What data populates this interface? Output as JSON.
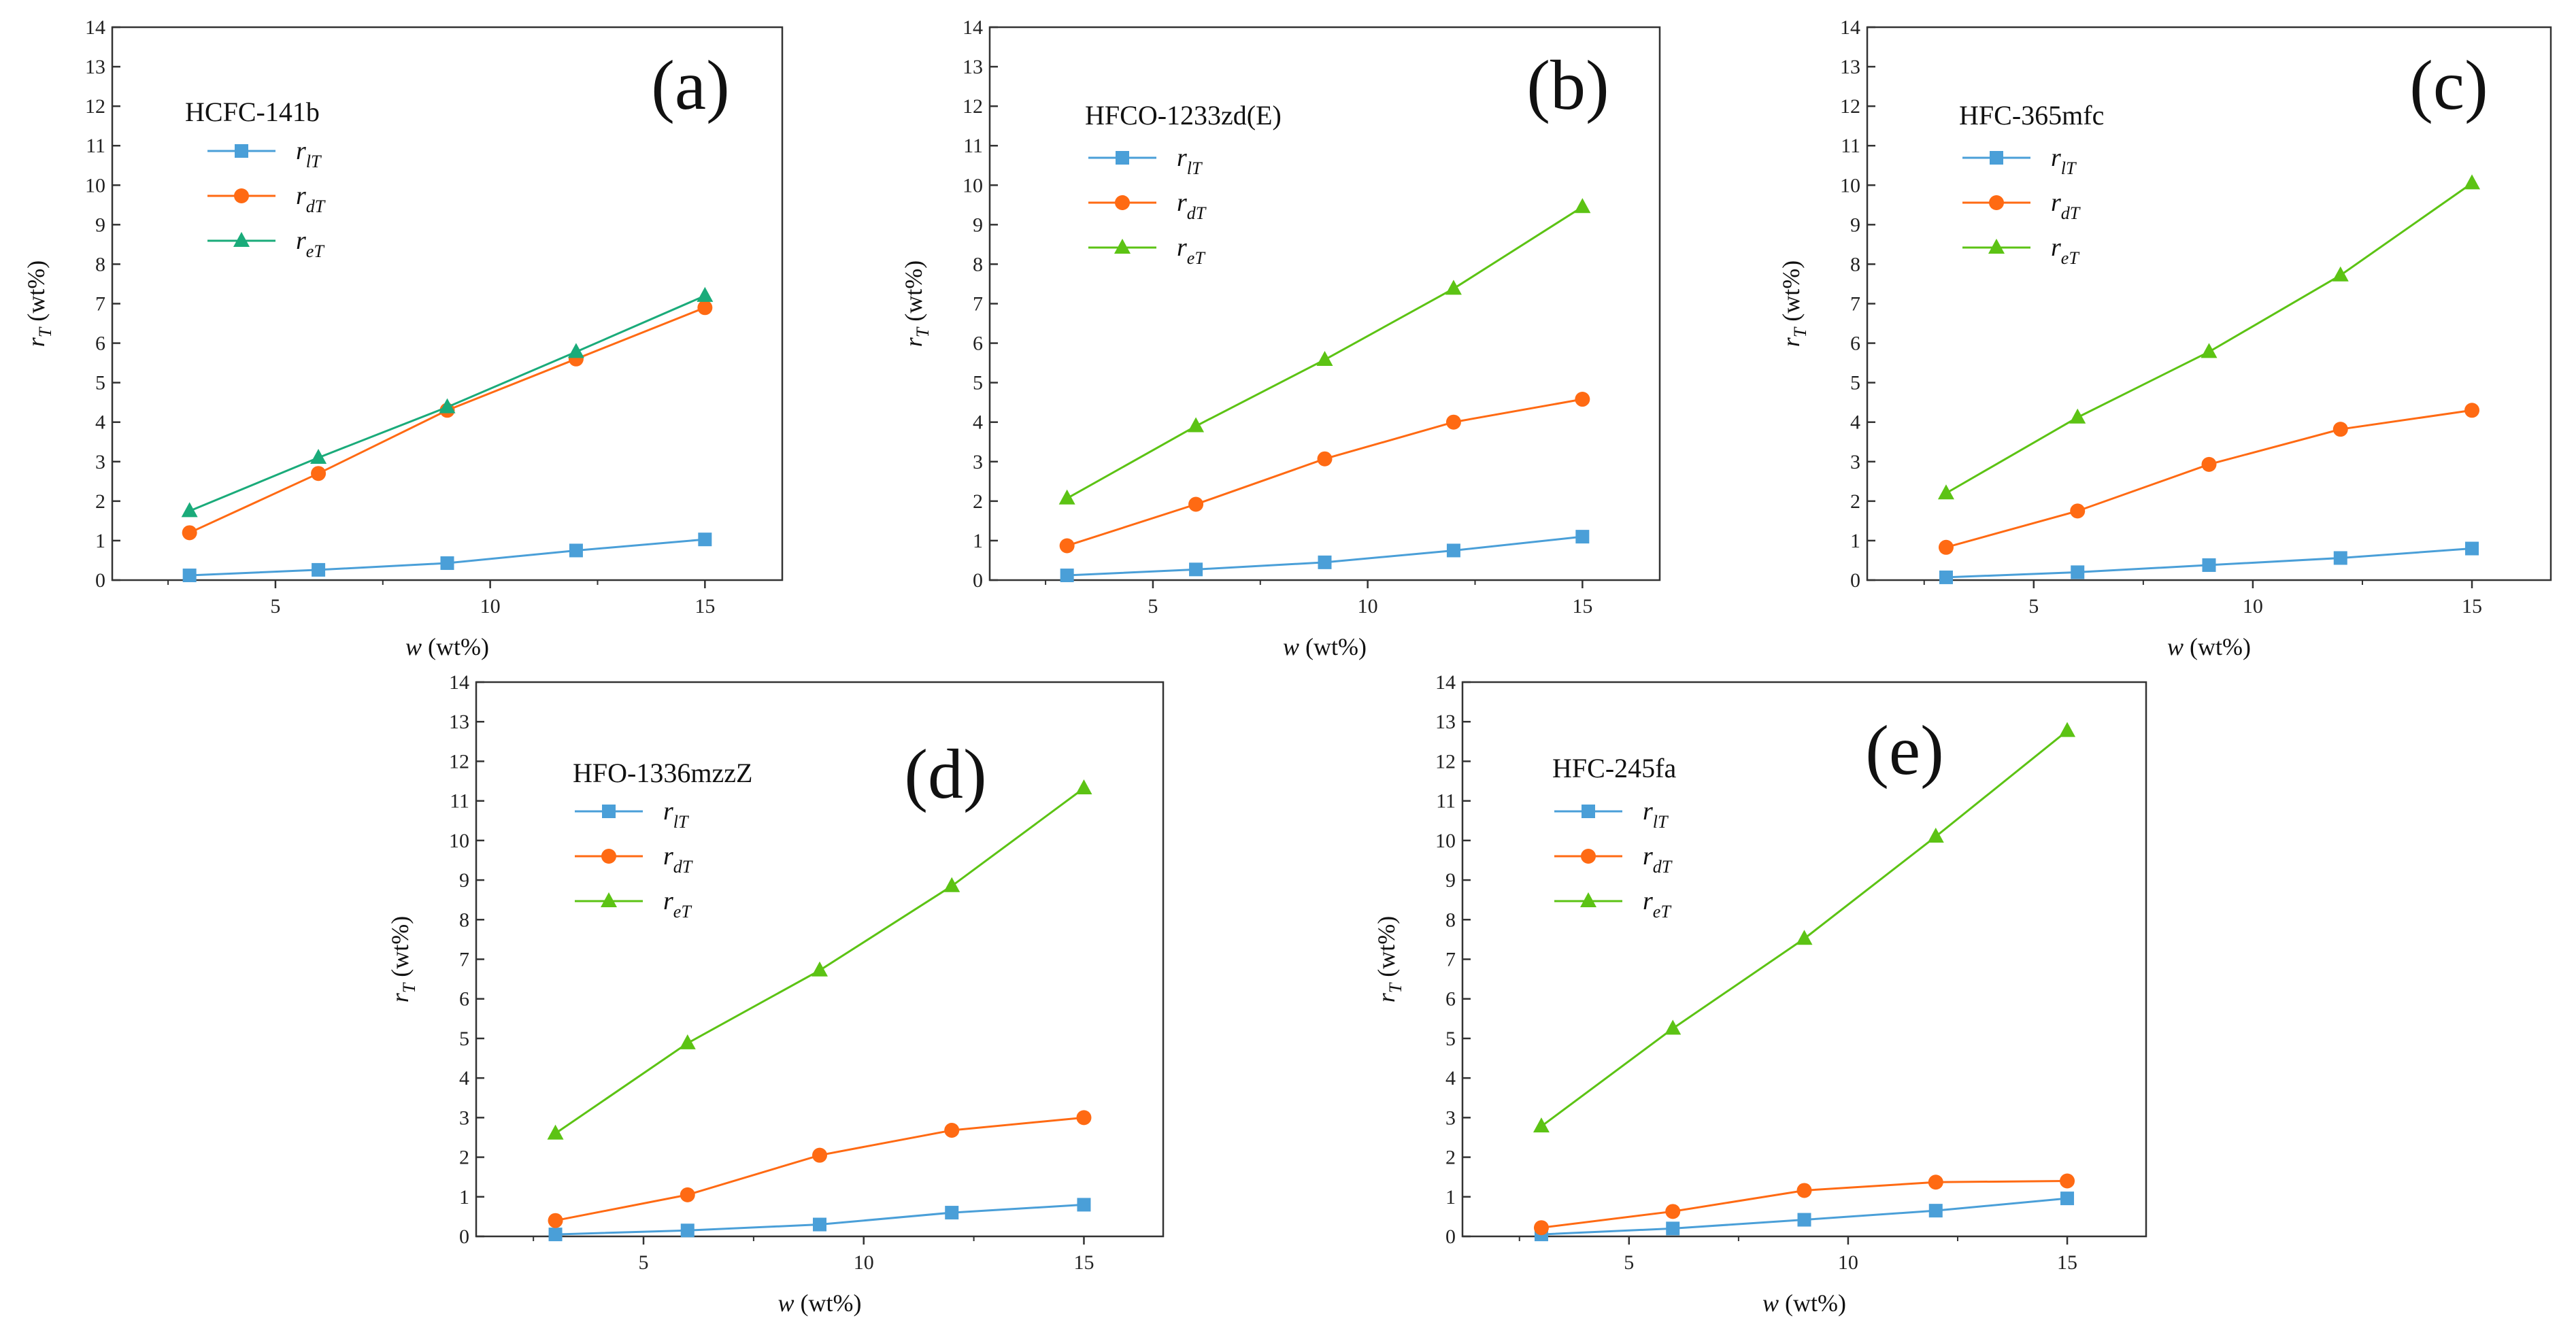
{
  "figure": {
    "x_axis_label_main": "w",
    "x_axis_label_unit": "(wt%)",
    "y_axis_label_main": "r",
    "y_axis_label_sub": "T",
    "y_axis_label_unit": "(wt%)"
  },
  "legend": [
    {
      "main": "r",
      "sub": "lT"
    },
    {
      "main": "r",
      "sub": "dT"
    },
    {
      "main": "r",
      "sub": "eT"
    }
  ],
  "colors": {
    "rlT": "#4a9fd8",
    "rdT": "#ff6a13",
    "reT_a": "#1aab7a",
    "reT": "#5cc314"
  },
  "chart_data": [
    {
      "type": "line",
      "panel": "(a)",
      "refrigerant": "HCFC-141b",
      "x": [
        3,
        6,
        9,
        12,
        15
      ],
      "xlim": [
        1.2,
        16.8
      ],
      "ylim": [
        0,
        14
      ],
      "xticks": [
        5,
        10,
        15
      ],
      "yticks": [
        0,
        1,
        2,
        3,
        4,
        5,
        6,
        7,
        8,
        9,
        10,
        11,
        12,
        13,
        14
      ],
      "xlabel": "w (wt%)",
      "ylabel": "rT (wt%)",
      "series": [
        {
          "name": "rlT",
          "values": [
            0.12,
            0.26,
            0.43,
            0.75,
            1.03
          ]
        },
        {
          "name": "rdT",
          "values": [
            1.2,
            2.7,
            4.3,
            5.6,
            6.9
          ]
        },
        {
          "name": "reT",
          "values": [
            1.75,
            3.1,
            4.38,
            5.78,
            7.2
          ]
        }
      ]
    },
    {
      "type": "line",
      "panel": "(b)",
      "refrigerant": "HFCO-1233zd(E)",
      "x": [
        3,
        6,
        9,
        12,
        15
      ],
      "xlim": [
        1.2,
        16.8
      ],
      "ylim": [
        0,
        14
      ],
      "xticks": [
        5,
        10,
        15
      ],
      "yticks": [
        0,
        1,
        2,
        3,
        4,
        5,
        6,
        7,
        8,
        9,
        10,
        11,
        12,
        13,
        14
      ],
      "xlabel": "w (wt%)",
      "ylabel": "rT (wt%)",
      "series": [
        {
          "name": "rlT",
          "values": [
            0.12,
            0.27,
            0.45,
            0.75,
            1.1
          ]
        },
        {
          "name": "rdT",
          "values": [
            0.87,
            1.92,
            3.07,
            4.0,
            4.58
          ]
        },
        {
          "name": "reT",
          "values": [
            2.07,
            3.9,
            5.58,
            7.38,
            9.45
          ]
        }
      ]
    },
    {
      "type": "line",
      "panel": "(c)",
      "refrigerant": "HFC-365mfc",
      "x": [
        3,
        6,
        9,
        12,
        15
      ],
      "xlim": [
        1.2,
        16.8
      ],
      "ylim": [
        0,
        14
      ],
      "xticks": [
        5,
        10,
        15
      ],
      "yticks": [
        0,
        1,
        2,
        3,
        4,
        5,
        6,
        7,
        8,
        9,
        10,
        11,
        12,
        13,
        14
      ],
      "xlabel": "w (wt%)",
      "ylabel": "rT (wt%)",
      "series": [
        {
          "name": "rlT",
          "values": [
            0.07,
            0.2,
            0.38,
            0.56,
            0.8
          ]
        },
        {
          "name": "rdT",
          "values": [
            0.83,
            1.75,
            2.93,
            3.82,
            4.3
          ]
        },
        {
          "name": "reT",
          "values": [
            2.2,
            4.12,
            5.78,
            7.72,
            10.05
          ]
        }
      ]
    },
    {
      "type": "line",
      "panel": "(d)",
      "refrigerant": "HFO-1336mzzZ",
      "x": [
        3,
        6,
        9,
        12,
        15
      ],
      "xlim": [
        1.2,
        16.8
      ],
      "ylim": [
        0,
        14
      ],
      "xticks": [
        5,
        10,
        15
      ],
      "yticks": [
        0,
        1,
        2,
        3,
        4,
        5,
        6,
        7,
        8,
        9,
        10,
        11,
        12,
        13,
        14
      ],
      "xlabel": "w (wt%)",
      "ylabel": "rT (wt%)",
      "series": [
        {
          "name": "rlT",
          "values": [
            0.05,
            0.15,
            0.3,
            0.6,
            0.8
          ]
        },
        {
          "name": "rdT",
          "values": [
            0.4,
            1.05,
            2.05,
            2.68,
            3.0
          ]
        },
        {
          "name": "reT",
          "values": [
            2.6,
            4.88,
            6.72,
            8.85,
            11.32
          ]
        }
      ]
    },
    {
      "type": "line",
      "panel": "(e)",
      "refrigerant": "HFC-245fa",
      "x": [
        3,
        6,
        9,
        12,
        15
      ],
      "xlim": [
        1.2,
        16.8
      ],
      "ylim": [
        0,
        14
      ],
      "xticks": [
        5,
        10,
        15
      ],
      "yticks": [
        0,
        1,
        2,
        3,
        4,
        5,
        6,
        7,
        8,
        9,
        10,
        11,
        12,
        13,
        14
      ],
      "xlabel": "w (wt%)",
      "ylabel": "rT (wt%)",
      "series": [
        {
          "name": "rlT",
          "values": [
            0.05,
            0.2,
            0.42,
            0.65,
            0.96
          ]
        },
        {
          "name": "rdT",
          "values": [
            0.22,
            0.63,
            1.16,
            1.37,
            1.4
          ]
        },
        {
          "name": "reT",
          "values": [
            2.78,
            5.25,
            7.52,
            10.1,
            12.77
          ]
        }
      ]
    }
  ]
}
